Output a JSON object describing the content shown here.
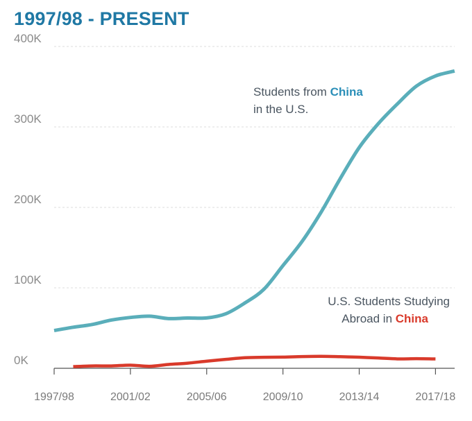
{
  "page": {
    "title": "1997/98 - PRESENT"
  },
  "chart_data": {
    "type": "line",
    "title": "1997/98 - PRESENT",
    "xlabel": "",
    "ylabel": "",
    "ylim": [
      0,
      400000
    ],
    "yticks": [
      {
        "value": 0,
        "label": "0K"
      },
      {
        "value": 100000,
        "label": "100K"
      },
      {
        "value": 200000,
        "label": "200K"
      },
      {
        "value": 300000,
        "label": "300K"
      },
      {
        "value": 400000,
        "label": "400K"
      }
    ],
    "x": [
      "1997/98",
      "1998/99",
      "1999/00",
      "2000/01",
      "2001/02",
      "2002/03",
      "2003/04",
      "2004/05",
      "2005/06",
      "2006/07",
      "2007/08",
      "2008/09",
      "2009/10",
      "2010/11",
      "2011/12",
      "2012/13",
      "2013/14",
      "2014/15",
      "2015/16",
      "2016/17",
      "2017/18",
      "2018/19"
    ],
    "xtick_labels": [
      "1997/98",
      "2001/02",
      "2005/06",
      "2009/10",
      "2013/14",
      "2017/18"
    ],
    "grid": true,
    "series": [
      {
        "name": "Students from China in the U.S.",
        "color": "#5aaeba",
        "values": [
          46958,
          51001,
          54466,
          59939,
          63211,
          64757,
          61765,
          62523,
          62582,
          67723,
          81127,
          98235,
          127628,
          157558,
          194029,
          235597,
          274439,
          304040,
          328547,
          350755,
          363341,
          369548
        ]
      },
      {
        "name": "U.S. Students Studying Abroad in China",
        "color": "#d93a2b",
        "values": [
          null,
          2116,
          2949,
          2942,
          3911,
          2493,
          4737,
          6389,
          8830,
          11064,
          13165,
          13674,
          13910,
          14596,
          14887,
          14413,
          13763,
          12790,
          11688,
          11910,
          11613,
          null
        ]
      }
    ],
    "annotations": [
      {
        "line1_prefix": "Students from ",
        "line1_emph": "China",
        "line2": "in the U.S.",
        "emph_color": "#2b8fb8"
      },
      {
        "line1": "U.S. Students Studying",
        "line2_prefix": "Abroad in ",
        "line2_emph": "China",
        "emph_color": "#d93a2b"
      }
    ]
  }
}
